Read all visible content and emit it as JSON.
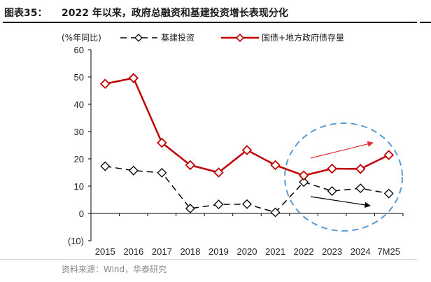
{
  "header": {
    "figure_label": "图表35：",
    "title": "2022 年以来，政府总融资和基建投资增长表现分化"
  },
  "source": "资料来源：Wind，华泰研究",
  "chart_data": {
    "type": "line",
    "unit_label": "(%年同比)",
    "categories": [
      "2015",
      "2016",
      "2017",
      "2018",
      "2019",
      "2020",
      "2021",
      "2022",
      "2023",
      "2024",
      "7M25"
    ],
    "ylim": [
      -10,
      60
    ],
    "yticks": [
      -10,
      0,
      10,
      20,
      30,
      40,
      50,
      60
    ],
    "ytick_labels": [
      "(10)",
      "0",
      "10",
      "20",
      "30",
      "40",
      "50",
      "60"
    ],
    "grid": false,
    "legend_position": "top",
    "series": [
      {
        "name": "基建投资",
        "style": "dashed",
        "color": "#000000",
        "marker": "diamond-open",
        "values": [
          17.3,
          15.7,
          14.9,
          1.8,
          3.3,
          3.4,
          0.4,
          11.5,
          8.2,
          9.2,
          7.3
        ]
      },
      {
        "name": "国债+地方政府债存量",
        "style": "solid",
        "color": "#c00000",
        "marker": "diamond-open",
        "values": [
          47.5,
          49.6,
          25.9,
          17.7,
          15.0,
          23.2,
          17.7,
          13.9,
          16.4,
          16.3,
          21.4
        ]
      }
    ],
    "annotations": [
      {
        "type": "ellipse",
        "style": "dashed",
        "color": "#5b9bd5"
      },
      {
        "type": "arrow",
        "color": "#e03030",
        "direction": "up"
      },
      {
        "type": "arrow",
        "color": "#000000",
        "direction": "down"
      }
    ]
  }
}
